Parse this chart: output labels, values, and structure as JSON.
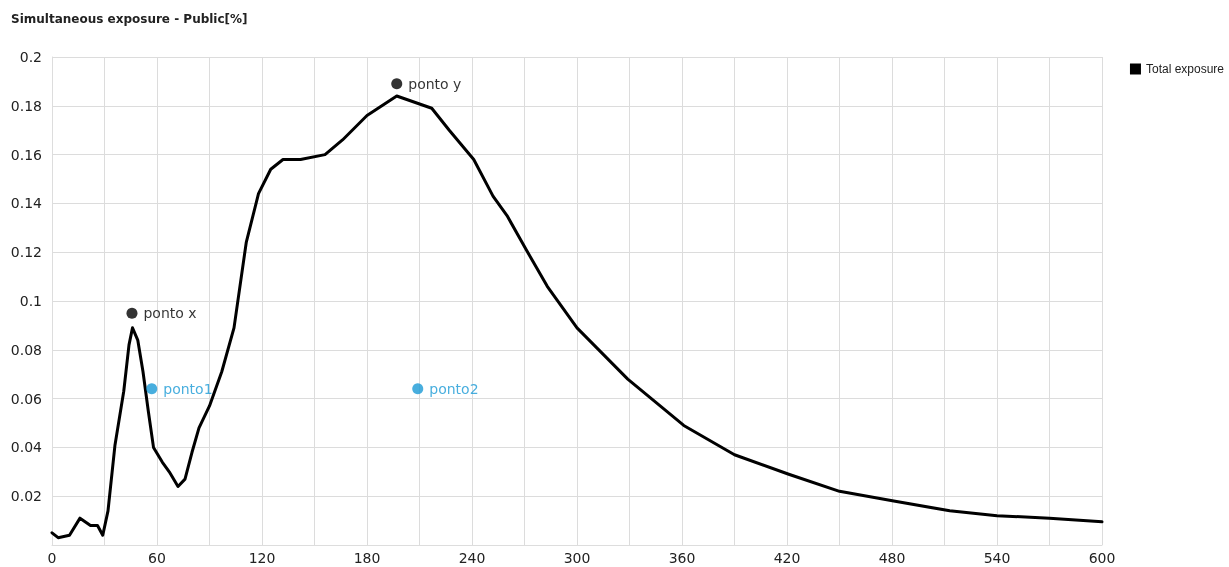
{
  "chart_data": {
    "type": "line",
    "title": "Simultaneous exposure - Public[%]",
    "xlim": [
      0,
      600
    ],
    "xticks": [
      0,
      {
        "value": 30,
        "label": null
      },
      60,
      {
        "value": 90,
        "label": null
      },
      120,
      {
        "value": 150,
        "label": null
      },
      180,
      {
        "value": 210,
        "label": null
      },
      240,
      {
        "value": 270,
        "label": null
      },
      300,
      {
        "value": 330,
        "label": null
      },
      360,
      {
        "value": 390,
        "label": null
      },
      420,
      {
        "value": 450,
        "label": null
      },
      480,
      {
        "value": 510,
        "label": null
      },
      540,
      {
        "value": 570,
        "label": null
      },
      600
    ],
    "ylim": [
      0,
      0.2
    ],
    "yticks": [
      0.02,
      0.04,
      0.06,
      0.08,
      0.1,
      0.12,
      0.14,
      0.16,
      0.18,
      0.2
    ],
    "grid": true,
    "legend": "top right",
    "marker": "none",
    "line_style": "solid",
    "series": [
      {
        "name": "Total exposure",
        "color": "#000000",
        "x": [
          0,
          3.5,
          10,
          16,
          22,
          26,
          29,
          32,
          36,
          41,
          44,
          46,
          49,
          52,
          55,
          58,
          63,
          67,
          72,
          76,
          80,
          84,
          90,
          97,
          104,
          111,
          118,
          125,
          132,
          142,
          156,
          166,
          180,
          197,
          217,
          227,
          241,
          252,
          260,
          271,
          283,
          300,
          329,
          361,
          390,
          421,
          450,
          481,
          513,
          540,
          570,
          600
        ],
        "values": [
          0.005,
          0.003,
          0.004,
          0.011,
          0.008,
          0.008,
          0.004,
          0.014,
          0.041,
          0.063,
          0.082,
          0.089,
          0.084,
          0.071,
          0.055,
          0.04,
          0.034,
          0.03,
          0.024,
          0.027,
          0.038,
          0.048,
          0.057,
          0.071,
          0.089,
          0.124,
          0.144,
          0.154,
          0.158,
          0.158,
          0.16,
          0.166,
          0.176,
          0.184,
          0.179,
          0.17,
          0.158,
          0.143,
          0.135,
          0.121,
          0.106,
          0.089,
          0.068,
          0.049,
          0.037,
          0.029,
          0.022,
          0.018,
          0.014,
          0.012,
          0.011,
          0.0095
        ]
      },
      {
        "name": "ponto x",
        "type": "scatter",
        "marker": "circle",
        "color": "#000000",
        "x": [
          45.7
        ],
        "values": [
          0.095
        ]
      },
      {
        "name": "ponto y",
        "type": "scatter",
        "marker": "circle",
        "color": "#000000",
        "x": [
          197
        ],
        "values": [
          0.189
        ]
      },
      {
        "name": "ponto1",
        "type": "scatter",
        "marker": "circle",
        "color": "#1a9ad6",
        "x": [
          57
        ],
        "values": [
          0.064
        ]
      },
      {
        "name": "ponto2",
        "type": "scatter",
        "marker": "circle",
        "color": "#1a9ad6",
        "x": [
          209
        ],
        "values": [
          0.064
        ]
      }
    ]
  }
}
